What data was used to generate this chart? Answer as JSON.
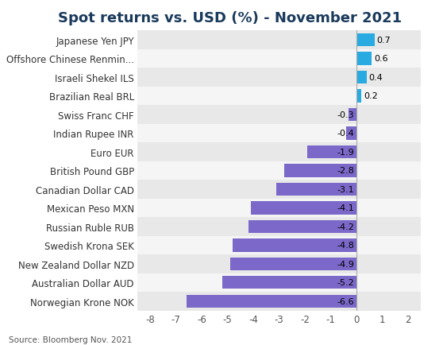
{
  "title": "Spot returns vs. USD (%) - November 2021",
  "categories": [
    "Norwegian Krone NOK",
    "Australian Dollar AUD",
    "New Zealand Dollar NZD",
    "Swedish Krona SEK",
    "Russian Ruble RUB",
    "Mexican Peso MXN",
    "Canadian Dollar CAD",
    "British Pound GBP",
    "Euro EUR",
    "Indian Rupee INR",
    "Swiss Franc CHF",
    "Brazilian Real BRL",
    "Israeli Shekel ILS",
    "Offshore Chinese Renmin...",
    "Japanese Yen JPY"
  ],
  "values": [
    -6.6,
    -5.2,
    -4.9,
    -4.8,
    -4.2,
    -4.1,
    -3.1,
    -2.8,
    -1.9,
    -0.4,
    -0.3,
    0.2,
    0.4,
    0.6,
    0.7
  ],
  "color_negative": "#7B68C8",
  "color_positive": "#29ABE2",
  "xlim": [
    -8.5,
    2.5
  ],
  "xticks": [
    -8,
    -7,
    -6,
    -5,
    -4,
    -3,
    -2,
    -1,
    0,
    1,
    2
  ],
  "source": "Source: Bloomberg Nov. 2021",
  "bg_color_odd": "#e8e8e8",
  "bg_color_even": "#f5f5f5",
  "title_fontsize": 13,
  "title_color": "#1a3a5c",
  "label_fontsize": 8.5,
  "value_fontsize": 8,
  "source_fontsize": 7.5
}
